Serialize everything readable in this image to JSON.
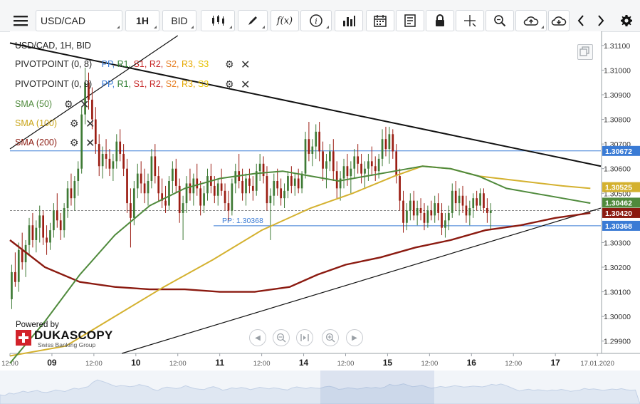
{
  "toolbar": {
    "symbol": "USD/CAD",
    "timeframe": "1H",
    "price_side": "BID",
    "icons": [
      "menu-icon",
      "candles-icon",
      "draw-icon",
      "function-icon",
      "info-icon",
      "volume-icon",
      "calendar-icon",
      "news-icon",
      "lock-icon",
      "crosshair-icon",
      "zoom-icon",
      "upload-icon",
      "download-icon",
      "prev-icon",
      "next-icon",
      "settings-icon"
    ],
    "fx_label": "f(x)"
  },
  "legend": {
    "instrument": "USD/CAD, 1H, BID",
    "pivot1": "PIVOTPOINT (0, 8)",
    "pivot2": "PIVOTPOINT (0, 9)",
    "pivot_levels": [
      "PP,",
      "R1,",
      "S1,",
      "R2,",
      "S2,",
      "R3,",
      "S3"
    ],
    "sma50": "SMA (50)",
    "sma100": "SMA (100)",
    "sma200": "SMA (200)"
  },
  "branding": {
    "powered_by": "Powered by",
    "name": "DUKASCOPY",
    "tagline": "Swiss Banking Group"
  },
  "colors": {
    "sma50": "#4f8a3c",
    "sma100": "#d4b12f",
    "sma200": "#8b1a10",
    "pp": "#3a7bd5",
    "r1": "#2e7d32",
    "s1": "#c62828",
    "r2": "#c62828",
    "s2": "#e67e22",
    "r3": "#e6a800",
    "s3": "#e6c200",
    "candle_bull": "#3e7a35",
    "candle_bear": "#9b1d13"
  },
  "chart_data": {
    "type": "candlestick",
    "instrument": "USD/CAD",
    "timeframe": "1H",
    "ylim": [
      1.2985,
      1.3114
    ],
    "y_ticks": [
      "1.31100",
      "1.31000",
      "1.30900",
      "1.30800",
      "1.30700",
      "1.30600",
      "1.30500",
      "1.30300",
      "1.30200",
      "1.30100",
      "1.30000",
      "1.29900"
    ],
    "x_ticks": [
      {
        "label": "12:00",
        "t": 0
      },
      {
        "label": "09",
        "t": 12
      },
      {
        "label": "12:00",
        "t": 24
      },
      {
        "label": "10",
        "t": 36
      },
      {
        "label": "12:00",
        "t": 48
      },
      {
        "label": "11",
        "t": 60
      },
      {
        "label": "12:00",
        "t": 72
      },
      {
        "label": "14",
        "t": 84
      },
      {
        "label": "12:00",
        "t": 96
      },
      {
        "label": "15",
        "t": 108
      },
      {
        "label": "12:00",
        "t": 120
      },
      {
        "label": "16",
        "t": 132
      },
      {
        "label": "12:00",
        "t": 144
      },
      {
        "label": "17",
        "t": 156
      },
      {
        "label": "17.01.2020",
        "t": 168
      }
    ],
    "price_labels": [
      {
        "value": "1.30672",
        "kind": "level",
        "color": "#3a7bd5"
      },
      {
        "value": "1.30525",
        "kind": "sma100",
        "color": "#d4b12f"
      },
      {
        "value": "1.30462",
        "kind": "sma50",
        "color": "#4f8a3c"
      },
      {
        "value": "1.30420",
        "kind": "sma200",
        "color": "#8b1a10"
      },
      {
        "value": "1.30368",
        "kind": "pp",
        "color": "#3a7bd5"
      }
    ],
    "pp_label": "PP: 1.30368",
    "pp_value": 1.30368,
    "level_value": 1.30672,
    "current_price": 1.3043,
    "candles": [
      [
        1.3007,
        1.3021,
        1.3003,
        1.3018
      ],
      [
        1.3018,
        1.3026,
        1.3012,
        1.3014
      ],
      [
        1.3014,
        1.303,
        1.301,
        1.3027
      ],
      [
        1.3027,
        1.3034,
        1.3019,
        1.3022
      ],
      [
        1.3022,
        1.3031,
        1.3016,
        1.3029
      ],
      [
        1.3029,
        1.304,
        1.3025,
        1.3037
      ],
      [
        1.3037,
        1.3042,
        1.3028,
        1.3031
      ],
      [
        1.3031,
        1.3039,
        1.3026,
        1.3036
      ],
      [
        1.3036,
        1.3045,
        1.303,
        1.3041
      ],
      [
        1.3041,
        1.3043,
        1.3029,
        1.3032
      ],
      [
        1.3032,
        1.3037,
        1.3025,
        1.303
      ],
      [
        1.303,
        1.3038,
        1.3027,
        1.3035
      ],
      [
        1.3035,
        1.3046,
        1.3032,
        1.3043
      ],
      [
        1.3043,
        1.305,
        1.3036,
        1.3039
      ],
      [
        1.3039,
        1.3042,
        1.3031,
        1.3035
      ],
      [
        1.3035,
        1.3046,
        1.3032,
        1.3044
      ],
      [
        1.3044,
        1.3055,
        1.304,
        1.3052
      ],
      [
        1.3052,
        1.3058,
        1.3045,
        1.3048
      ],
      [
        1.3048,
        1.3057,
        1.3043,
        1.3055
      ],
      [
        1.3055,
        1.3063,
        1.3049,
        1.306
      ],
      [
        1.306,
        1.3085,
        1.3058,
        1.3082
      ],
      [
        1.3082,
        1.3101,
        1.3078,
        1.3095
      ],
      [
        1.3095,
        1.3099,
        1.3084,
        1.3088
      ],
      [
        1.3088,
        1.3093,
        1.3076,
        1.308
      ],
      [
        1.308,
        1.3085,
        1.3066,
        1.307
      ],
      [
        1.307,
        1.3074,
        1.3057,
        1.3061
      ],
      [
        1.3061,
        1.3069,
        1.3056,
        1.3066
      ],
      [
        1.3066,
        1.3072,
        1.306,
        1.3064
      ],
      [
        1.3064,
        1.3068,
        1.3057,
        1.306
      ],
      [
        1.306,
        1.3066,
        1.3055,
        1.3063
      ],
      [
        1.3063,
        1.3074,
        1.306,
        1.3071
      ],
      [
        1.3071,
        1.3076,
        1.3063,
        1.3066
      ],
      [
        1.3066,
        1.307,
        1.3057,
        1.306
      ],
      [
        1.306,
        1.3064,
        1.3042,
        1.3046
      ],
      [
        1.3046,
        1.3052,
        1.3028,
        1.304
      ],
      [
        1.304,
        1.3055,
        1.3037,
        1.3052
      ],
      [
        1.3052,
        1.3062,
        1.3048,
        1.3058
      ],
      [
        1.3058,
        1.3063,
        1.305,
        1.3054
      ],
      [
        1.3054,
        1.306,
        1.3046,
        1.305
      ],
      [
        1.305,
        1.3058,
        1.3045,
        1.3055
      ],
      [
        1.3055,
        1.3068,
        1.3052,
        1.3065
      ],
      [
        1.3065,
        1.307,
        1.3054,
        1.3057
      ],
      [
        1.3057,
        1.3061,
        1.3047,
        1.305
      ],
      [
        1.305,
        1.3056,
        1.3044,
        1.3047
      ],
      [
        1.3047,
        1.3053,
        1.3042,
        1.3045
      ],
      [
        1.3045,
        1.3057,
        1.3043,
        1.3055
      ],
      [
        1.3055,
        1.3063,
        1.305,
        1.306
      ],
      [
        1.306,
        1.3064,
        1.305,
        1.3053
      ],
      [
        1.3053,
        1.3056,
        1.3038,
        1.3042
      ],
      [
        1.3042,
        1.3049,
        1.3031,
        1.3046
      ],
      [
        1.3046,
        1.3057,
        1.3042,
        1.3054
      ],
      [
        1.3054,
        1.306,
        1.3047,
        1.305
      ],
      [
        1.305,
        1.3058,
        1.3045,
        1.3056
      ],
      [
        1.3056,
        1.3062,
        1.3049,
        1.3052
      ],
      [
        1.3052,
        1.3055,
        1.3041,
        1.3045
      ],
      [
        1.3045,
        1.3053,
        1.3042,
        1.305
      ],
      [
        1.305,
        1.306,
        1.3047,
        1.3057
      ],
      [
        1.3057,
        1.3062,
        1.305,
        1.3053
      ],
      [
        1.3053,
        1.3057,
        1.3046,
        1.3049
      ],
      [
        1.3049,
        1.3056,
        1.3045,
        1.3054
      ],
      [
        1.3054,
        1.306,
        1.3049,
        1.3051
      ],
      [
        1.3051,
        1.3054,
        1.3043,
        1.3046
      ],
      [
        1.3046,
        1.3051,
        1.3039,
        1.3043
      ],
      [
        1.3043,
        1.3056,
        1.3041,
        1.3054
      ],
      [
        1.3054,
        1.3062,
        1.305,
        1.3059
      ],
      [
        1.3059,
        1.3066,
        1.3052,
        1.3055
      ],
      [
        1.3055,
        1.306,
        1.3047,
        1.305
      ],
      [
        1.305,
        1.3058,
        1.3045,
        1.3056
      ],
      [
        1.3056,
        1.306,
        1.305,
        1.3053
      ],
      [
        1.3053,
        1.3057,
        1.3047,
        1.3051
      ],
      [
        1.3051,
        1.3062,
        1.3049,
        1.3059
      ],
      [
        1.3059,
        1.3066,
        1.3055,
        1.3062
      ],
      [
        1.3062,
        1.3065,
        1.3054,
        1.3057
      ],
      [
        1.3057,
        1.3061,
        1.3043,
        1.3046
      ],
      [
        1.3046,
        1.3052,
        1.3031,
        1.3049
      ],
      [
        1.3049,
        1.3058,
        1.3045,
        1.3055
      ],
      [
        1.3055,
        1.306,
        1.3049,
        1.3052
      ],
      [
        1.3052,
        1.3056,
        1.3045,
        1.3048
      ],
      [
        1.3048,
        1.3054,
        1.3044,
        1.3051
      ],
      [
        1.3051,
        1.3059,
        1.3048,
        1.3057
      ],
      [
        1.3057,
        1.3061,
        1.305,
        1.3053
      ],
      [
        1.3053,
        1.3058,
        1.3049,
        1.3056
      ],
      [
        1.3056,
        1.306,
        1.305,
        1.3052
      ],
      [
        1.3052,
        1.3059,
        1.305,
        1.3058
      ],
      [
        1.3058,
        1.3075,
        1.3056,
        1.3072
      ],
      [
        1.3072,
        1.3079,
        1.3063,
        1.3066
      ],
      [
        1.3066,
        1.3072,
        1.3061,
        1.3069
      ],
      [
        1.3069,
        1.3078,
        1.3064,
        1.3075
      ],
      [
        1.3075,
        1.3079,
        1.3063,
        1.3067
      ],
      [
        1.3067,
        1.3071,
        1.3055,
        1.306
      ],
      [
        1.306,
        1.3066,
        1.3052,
        1.3063
      ],
      [
        1.3063,
        1.307,
        1.3059,
        1.3067
      ],
      [
        1.3067,
        1.3072,
        1.3055,
        1.3059
      ],
      [
        1.3059,
        1.3063,
        1.3048,
        1.3052
      ],
      [
        1.3052,
        1.3059,
        1.3047,
        1.3056
      ],
      [
        1.3056,
        1.3064,
        1.3052,
        1.3061
      ],
      [
        1.3061,
        1.3066,
        1.3053,
        1.3057
      ],
      [
        1.3057,
        1.3063,
        1.305,
        1.306
      ],
      [
        1.306,
        1.3068,
        1.3056,
        1.3065
      ],
      [
        1.3065,
        1.307,
        1.3058,
        1.3062
      ],
      [
        1.3062,
        1.3066,
        1.3054,
        1.3058
      ],
      [
        1.3058,
        1.3063,
        1.3052,
        1.306
      ],
      [
        1.306,
        1.3066,
        1.3055,
        1.3063
      ],
      [
        1.3063,
        1.3069,
        1.3057,
        1.3061
      ],
      [
        1.3061,
        1.3065,
        1.3055,
        1.3059
      ],
      [
        1.3059,
        1.3066,
        1.3056,
        1.3064
      ],
      [
        1.3064,
        1.3076,
        1.3061,
        1.3072
      ],
      [
        1.3072,
        1.3077,
        1.3065,
        1.3068
      ],
      [
        1.3068,
        1.3077,
        1.3062,
        1.3074
      ],
      [
        1.3074,
        1.3076,
        1.3064,
        1.3067
      ],
      [
        1.3067,
        1.307,
        1.3054,
        1.3057
      ],
      [
        1.3057,
        1.306,
        1.3043,
        1.3047
      ],
      [
        1.3047,
        1.3051,
        1.3034,
        1.3038
      ],
      [
        1.3038,
        1.3046,
        1.3035,
        1.3043
      ],
      [
        1.3043,
        1.305,
        1.3039,
        1.3047
      ],
      [
        1.3047,
        1.3051,
        1.3039,
        1.3041
      ],
      [
        1.3041,
        1.3047,
        1.3037,
        1.3044
      ],
      [
        1.3044,
        1.3048,
        1.3039,
        1.3042
      ],
      [
        1.3042,
        1.3046,
        1.3035,
        1.3038
      ],
      [
        1.3038,
        1.3045,
        1.3036,
        1.3043
      ],
      [
        1.3043,
        1.3047,
        1.3039,
        1.3041
      ],
      [
        1.3041,
        1.3049,
        1.3038,
        1.3046
      ],
      [
        1.3046,
        1.305,
        1.3039,
        1.3042
      ],
      [
        1.3042,
        1.3046,
        1.3033,
        1.3036
      ],
      [
        1.3036,
        1.3042,
        1.3032,
        1.3039
      ],
      [
        1.3039,
        1.3045,
        1.3035,
        1.3042
      ],
      [
        1.3042,
        1.3054,
        1.304,
        1.3051
      ],
      [
        1.3051,
        1.3055,
        1.3043,
        1.3046
      ],
      [
        1.3046,
        1.3052,
        1.3041,
        1.3049
      ],
      [
        1.3049,
        1.3053,
        1.3042,
        1.3045
      ],
      [
        1.3045,
        1.3049,
        1.3038,
        1.3041
      ],
      [
        1.3041,
        1.3047,
        1.3037,
        1.3044
      ],
      [
        1.3044,
        1.305,
        1.304,
        1.3048
      ],
      [
        1.3048,
        1.3051,
        1.3043,
        1.3045
      ],
      [
        1.3045,
        1.3052,
        1.3043,
        1.305
      ],
      [
        1.305,
        1.3052,
        1.3042,
        1.3044
      ],
      [
        1.3044,
        1.3048,
        1.3038,
        1.3042
      ],
      [
        1.3042,
        1.3046,
        1.3035,
        1.3043
      ]
    ],
    "sma50": [
      [
        0,
        1.2981
      ],
      [
        10,
        1.2998
      ],
      [
        20,
        1.3017
      ],
      [
        30,
        1.3033
      ],
      [
        40,
        1.3045
      ],
      [
        50,
        1.3052
      ],
      [
        60,
        1.3056
      ],
      [
        70,
        1.3058
      ],
      [
        78,
        1.3059
      ],
      [
        86,
        1.3057
      ],
      [
        94,
        1.3055
      ],
      [
        102,
        1.3057
      ],
      [
        110,
        1.3059
      ],
      [
        118,
        1.3061
      ],
      [
        126,
        1.306
      ],
      [
        134,
        1.3057
      ],
      [
        142,
        1.3052
      ],
      [
        150,
        1.305
      ],
      [
        158,
        1.3048
      ],
      [
        166,
        1.3046
      ]
    ],
    "sma100": [
      [
        0,
        1.2984
      ],
      [
        16,
        1.2988
      ],
      [
        30,
        1.3
      ],
      [
        44,
        1.3012
      ],
      [
        58,
        1.3023
      ],
      [
        72,
        1.3035
      ],
      [
        86,
        1.3044
      ],
      [
        98,
        1.305
      ],
      [
        110,
        1.3057
      ],
      [
        118,
        1.3061
      ],
      [
        126,
        1.306
      ],
      [
        134,
        1.3057
      ],
      [
        146,
        1.3055
      ],
      [
        158,
        1.3053
      ],
      [
        166,
        1.3052
      ]
    ],
    "sma200": [
      [
        0,
        1.3031
      ],
      [
        10,
        1.302
      ],
      [
        20,
        1.3014
      ],
      [
        30,
        1.3012
      ],
      [
        40,
        1.3011
      ],
      [
        50,
        1.3011
      ],
      [
        60,
        1.301
      ],
      [
        70,
        1.301
      ],
      [
        80,
        1.3012
      ],
      [
        88,
        1.3017
      ],
      [
        96,
        1.3021
      ],
      [
        106,
        1.3024
      ],
      [
        116,
        1.3028
      ],
      [
        126,
        1.3031
      ],
      [
        136,
        1.3035
      ],
      [
        146,
        1.3037
      ],
      [
        156,
        1.304
      ],
      [
        166,
        1.3042
      ]
    ],
    "trendlines": [
      {
        "name": "upper",
        "p1": [
          0,
          1.3111
        ],
        "p2": [
          169,
          1.3061
        ],
        "color": "#111111"
      },
      {
        "name": "lower",
        "p1": [
          32,
          1.2985
        ],
        "p2": [
          169,
          1.3044
        ],
        "color": "#111111"
      },
      {
        "name": "upper-left",
        "p1": [
          0,
          1.3068
        ],
        "p2": [
          48,
          1.3114
        ],
        "color": "#111111"
      }
    ]
  }
}
